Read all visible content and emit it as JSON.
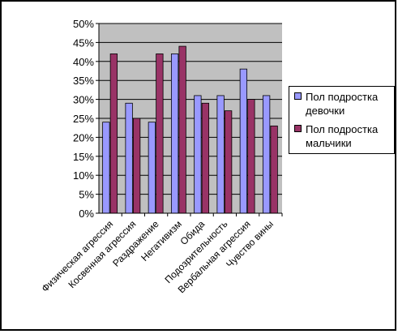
{
  "chart_data": {
    "type": "bar",
    "categories": [
      "Физическая агрессия",
      "Косвенная агрессия",
      "Раздражение",
      "Негативизм",
      "Обида",
      "Подозрительность",
      "Вербальная агрессия",
      "Чувство вины"
    ],
    "series": [
      {
        "name": "Пол подростка девочки",
        "color": "#9999ff",
        "values": [
          24,
          29,
          24,
          42,
          31,
          31,
          38,
          31
        ]
      },
      {
        "name": "Пол подростка мальчики",
        "color": "#993366",
        "values": [
          42,
          25,
          42,
          44,
          29,
          27,
          30,
          23
        ]
      }
    ],
    "y_ticks": [
      "0%",
      "5%",
      "10%",
      "15%",
      "20%",
      "25%",
      "30%",
      "35%",
      "40%",
      "45%",
      "50%"
    ],
    "ylim": [
      0,
      50
    ],
    "y_unit": "percent",
    "grid": true,
    "plot_background": "#c0c0c0",
    "legend_position": "right"
  }
}
